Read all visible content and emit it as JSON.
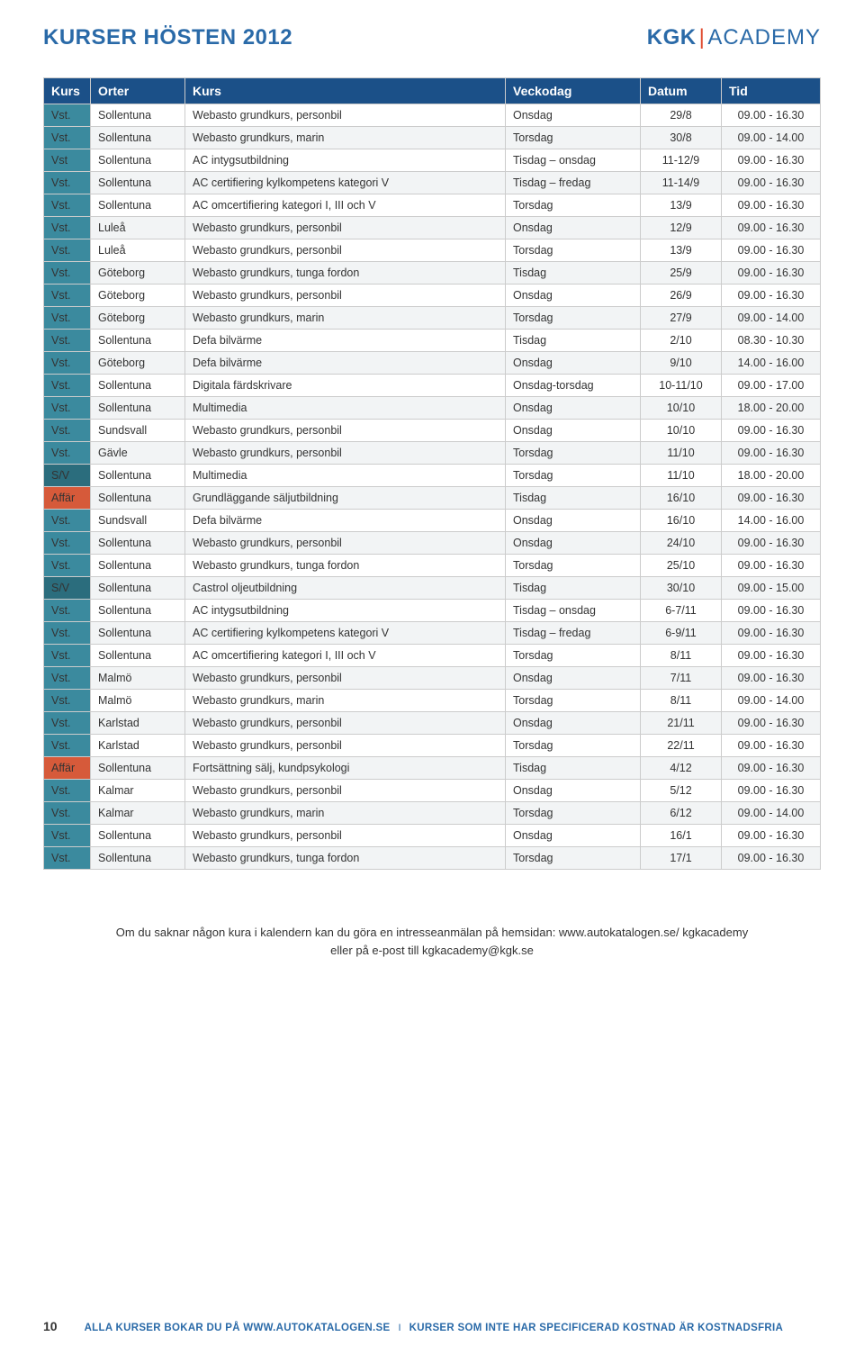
{
  "title": "KURSER HÖSTEN 2012",
  "brand": {
    "kgk": "KGK",
    "bar": "|",
    "academy": "ACADEMY"
  },
  "columns": [
    "Kurs",
    "Orter",
    "Kurs",
    "Veckodag",
    "Datum",
    "Tid"
  ],
  "tag_colors": {
    "Vst.": "#3b8a9e",
    "Vst": "#3b8a9e",
    "S/V": "#2b6d7d",
    "Affär": "#d65a3a"
  },
  "rows": [
    {
      "tag": "Vst.",
      "ort": "Sollentuna",
      "kurs": "Webasto grundkurs, personbil",
      "vd": "Onsdag",
      "datum": "29/8",
      "tid": "09.00 - 16.30"
    },
    {
      "tag": "Vst.",
      "ort": "Sollentuna",
      "kurs": "Webasto grundkurs, marin",
      "vd": "Torsdag",
      "datum": "30/8",
      "tid": "09.00 - 14.00"
    },
    {
      "tag": "Vst",
      "ort": "Sollentuna",
      "kurs": "AC intygsutbildning",
      "vd": "Tisdag – onsdag",
      "datum": "11-12/9",
      "tid": "09.00 - 16.30"
    },
    {
      "tag": "Vst.",
      "ort": "Sollentuna",
      "kurs": "AC certifiering kylkompetens kategori V",
      "vd": "Tisdag – fredag",
      "datum": "11-14/9",
      "tid": "09.00 - 16.30"
    },
    {
      "tag": "Vst.",
      "ort": "Sollentuna",
      "kurs": "AC omcertifiering kategori I, III och V",
      "vd": "Torsdag",
      "datum": "13/9",
      "tid": "09.00 - 16.30"
    },
    {
      "tag": "Vst.",
      "ort": "Luleå",
      "kurs": "Webasto grundkurs, personbil",
      "vd": "Onsdag",
      "datum": "12/9",
      "tid": "09.00 - 16.30"
    },
    {
      "tag": "Vst.",
      "ort": "Luleå",
      "kurs": "Webasto grundkurs, personbil",
      "vd": "Torsdag",
      "datum": "13/9",
      "tid": "09.00 - 16.30"
    },
    {
      "tag": "Vst.",
      "ort": "Göteborg",
      "kurs": "Webasto grundkurs, tunga fordon",
      "vd": "Tisdag",
      "datum": "25/9",
      "tid": "09.00 - 16.30"
    },
    {
      "tag": "Vst.",
      "ort": "Göteborg",
      "kurs": "Webasto grundkurs, personbil",
      "vd": "Onsdag",
      "datum": "26/9",
      "tid": "09.00 - 16.30"
    },
    {
      "tag": "Vst.",
      "ort": "Göteborg",
      "kurs": "Webasto grundkurs, marin",
      "vd": "Torsdag",
      "datum": "27/9",
      "tid": "09.00 - 14.00"
    },
    {
      "tag": "Vst.",
      "ort": "Sollentuna",
      "kurs": "Defa bilvärme",
      "vd": "Tisdag",
      "datum": "2/10",
      "tid": "08.30 - 10.30"
    },
    {
      "tag": "Vst.",
      "ort": "Göteborg",
      "kurs": "Defa bilvärme",
      "vd": "Onsdag",
      "datum": "9/10",
      "tid": "14.00 - 16.00"
    },
    {
      "tag": "Vst.",
      "ort": "Sollentuna",
      "kurs": "Digitala färdskrivare",
      "vd": "Onsdag-torsdag",
      "datum": "10-11/10",
      "tid": "09.00 - 17.00"
    },
    {
      "tag": "Vst.",
      "ort": "Sollentuna",
      "kurs": "Multimedia",
      "vd": "Onsdag",
      "datum": "10/10",
      "tid": "18.00 - 20.00"
    },
    {
      "tag": "Vst.",
      "ort": "Sundsvall",
      "kurs": "Webasto grundkurs, personbil",
      "vd": "Onsdag",
      "datum": "10/10",
      "tid": "09.00 - 16.30"
    },
    {
      "tag": "Vst.",
      "ort": "Gävle",
      "kurs": "Webasto grundkurs, personbil",
      "vd": "Torsdag",
      "datum": "11/10",
      "tid": "09.00 - 16.30"
    },
    {
      "tag": "S/V",
      "ort": "Sollentuna",
      "kurs": "Multimedia",
      "vd": "Torsdag",
      "datum": "11/10",
      "tid": "18.00 - 20.00"
    },
    {
      "tag": "Affär",
      "ort": "Sollentuna",
      "kurs": "Grundläggande säljutbildning",
      "vd": "Tisdag",
      "datum": "16/10",
      "tid": "09.00 - 16.30"
    },
    {
      "tag": "Vst.",
      "ort": "Sundsvall",
      "kurs": "Defa bilvärme",
      "vd": "Onsdag",
      "datum": "16/10",
      "tid": "14.00 - 16.00"
    },
    {
      "tag": "Vst.",
      "ort": "Sollentuna",
      "kurs": "Webasto grundkurs, personbil",
      "vd": "Onsdag",
      "datum": "24/10",
      "tid": "09.00 - 16.30"
    },
    {
      "tag": "Vst.",
      "ort": "Sollentuna",
      "kurs": "Webasto grundkurs, tunga fordon",
      "vd": "Torsdag",
      "datum": "25/10",
      "tid": "09.00 - 16.30"
    },
    {
      "tag": "S/V",
      "ort": "Sollentuna",
      "kurs": "Castrol oljeutbildning",
      "vd": "Tisdag",
      "datum": "30/10",
      "tid": "09.00 - 15.00"
    },
    {
      "tag": "Vst.",
      "ort": "Sollentuna",
      "kurs": "AC intygsutbildning",
      "vd": "Tisdag – onsdag",
      "datum": "6-7/11",
      "tid": "09.00 - 16.30"
    },
    {
      "tag": "Vst.",
      "ort": "Sollentuna",
      "kurs": "AC certifiering kylkompetens kategori V",
      "vd": "Tisdag – fredag",
      "datum": "6-9/11",
      "tid": "09.00 - 16.30"
    },
    {
      "tag": "Vst.",
      "ort": "Sollentuna",
      "kurs": "AC omcertifiering kategori I, III och V",
      "vd": "Torsdag",
      "datum": "8/11",
      "tid": "09.00 - 16.30"
    },
    {
      "tag": "Vst.",
      "ort": "Malmö",
      "kurs": "Webasto grundkurs, personbil",
      "vd": "Onsdag",
      "datum": "7/11",
      "tid": "09.00 - 16.30"
    },
    {
      "tag": "Vst.",
      "ort": "Malmö",
      "kurs": "Webasto grundkurs, marin",
      "vd": "Torsdag",
      "datum": "8/11",
      "tid": "09.00 - 14.00"
    },
    {
      "tag": "Vst.",
      "ort": "Karlstad",
      "kurs": "Webasto grundkurs, personbil",
      "vd": "Onsdag",
      "datum": "21/11",
      "tid": "09.00 - 16.30"
    },
    {
      "tag": "Vst.",
      "ort": "Karlstad",
      "kurs": "Webasto grundkurs, personbil",
      "vd": "Torsdag",
      "datum": "22/11",
      "tid": "09.00 - 16.30"
    },
    {
      "tag": "Affär",
      "ort": "Sollentuna",
      "kurs": "Fortsättning sälj, kundpsykologi",
      "vd": "Tisdag",
      "datum": "4/12",
      "tid": "09.00 - 16.30"
    },
    {
      "tag": "Vst.",
      "ort": "Kalmar",
      "kurs": "Webasto grundkurs, personbil",
      "vd": "Onsdag",
      "datum": "5/12",
      "tid": "09.00 - 16.30"
    },
    {
      "tag": "Vst.",
      "ort": "Kalmar",
      "kurs": "Webasto grundkurs, marin",
      "vd": "Torsdag",
      "datum": "6/12",
      "tid": "09.00 - 14.00"
    },
    {
      "tag": "Vst.",
      "ort": "Sollentuna",
      "kurs": "Webasto grundkurs, personbil",
      "vd": "Onsdag",
      "datum": "16/1",
      "tid": "09.00 - 16.30"
    },
    {
      "tag": "Vst.",
      "ort": "Sollentuna",
      "kurs": "Webasto grundkurs, tunga fordon",
      "vd": "Torsdag",
      "datum": "17/1",
      "tid": "09.00 - 16.30"
    }
  ],
  "footnote_line1": "Om du saknar någon kura i kalendern kan du göra en intresseanmälan på hemsidan: www.autokatalogen.se/ kgkacademy",
  "footnote_line2": "eller på e-post till kgkacademy@kgk.se",
  "footer": {
    "page_num": "10",
    "text1": "ALLA KURSER BOKAR DU PÅ WWW.AUTOKATALOGEN.SE",
    "sep": "I",
    "text2": "KURSER SOM INTE HAR SPECIFICERAD KOSTNAD ÄR KOSTNADSFRIA"
  }
}
